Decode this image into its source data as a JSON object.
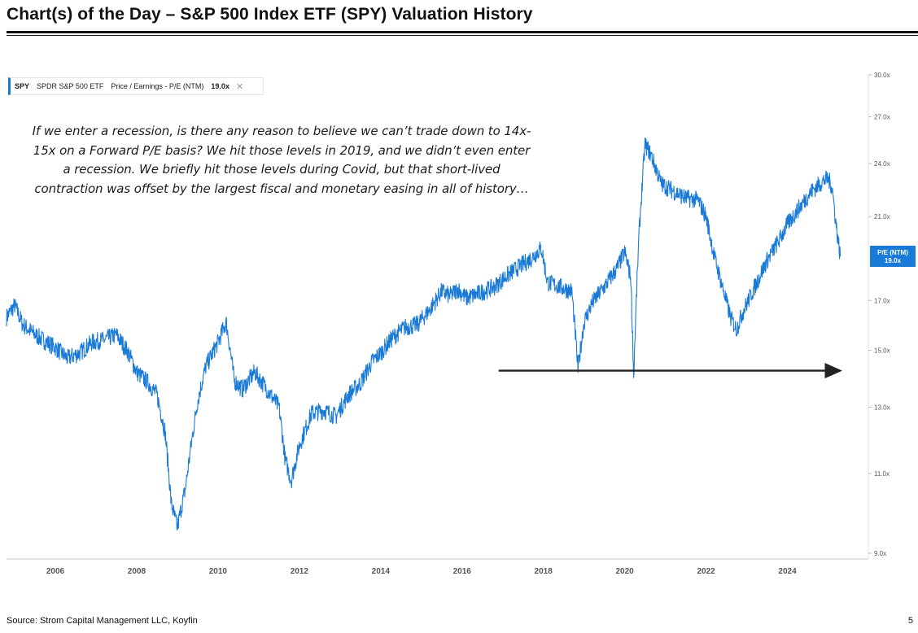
{
  "page": {
    "title": "Chart(s) of the Day – S&P 500 Index ETF (SPY) Valuation History",
    "source": "Source: Strom Capital Management LLC, Koyfin",
    "page_number": "5"
  },
  "legend": {
    "ticker": "SPY",
    "name": "SPDR S&P 500 ETF",
    "metric": "Price / Earnings - P/E (NTM)",
    "value": "19.0x",
    "close_icon": "close-icon"
  },
  "annotation": "If we enter a recession, is there any reason to believe we can’t trade down to 14x-15x on a Forward P/E basis? We hit those levels in 2019, and we didn’t even enter a recession. We briefly hit those levels during Covid, but that short-lived contraction was offset by the largest fiscal and monetary easing in all of history…",
  "badge": {
    "label": "P/E (NTM)",
    "value": "19.0x"
  },
  "colors": {
    "series": "#1a7ad8",
    "badge_bg": "#1a7ad8",
    "arrow": "#222222",
    "axis_text": "#555555"
  },
  "chart_data": {
    "type": "line",
    "title": "",
    "xlabel": "",
    "ylabel": "",
    "xlim": [
      2004.8,
      2025.65
    ],
    "ylim": [
      9.0,
      30.0
    ],
    "y_scale": "log",
    "grid": false,
    "x_tick_labels": [
      "2006",
      "2008",
      "2010",
      "2012",
      "2014",
      "2016",
      "2018",
      "2020",
      "2022",
      "2024"
    ],
    "y_tick_labels": [
      "9.0x",
      "11.0x",
      "13.0x",
      "15.0x",
      "17.0x",
      "21.0x",
      "24.0x",
      "27.0x",
      "30.0x"
    ],
    "series": [
      {
        "name": "P/E (NTM)",
        "x": [
          2004.8,
          2005.0,
          2005.2,
          2005.5,
          2005.8,
          2006.0,
          2006.3,
          2006.6,
          2006.9,
          2007.2,
          2007.5,
          2007.8,
          2008.0,
          2008.3,
          2008.5,
          2008.7,
          2008.85,
          2009.0,
          2009.2,
          2009.5,
          2009.7,
          2010.0,
          2010.2,
          2010.4,
          2010.6,
          2010.9,
          2011.2,
          2011.5,
          2011.65,
          2011.8,
          2012.0,
          2012.3,
          2012.6,
          2012.9,
          2013.2,
          2013.5,
          2013.8,
          2014.0,
          2014.3,
          2014.6,
          2014.9,
          2015.2,
          2015.5,
          2015.7,
          2015.9,
          2016.1,
          2016.4,
          2016.8,
          2017.1,
          2017.4,
          2017.7,
          2017.95,
          2018.1,
          2018.4,
          2018.7,
          2018.85,
          2019.0,
          2019.2,
          2019.5,
          2019.8,
          2020.0,
          2020.15,
          2020.22,
          2020.35,
          2020.5,
          2020.65,
          2020.9,
          2021.2,
          2021.5,
          2021.8,
          2022.0,
          2022.2,
          2022.4,
          2022.6,
          2022.75,
          2022.9,
          2023.2,
          2023.5,
          2023.8,
          2024.0,
          2024.3,
          2024.6,
          2024.9,
          2025.0,
          2025.1,
          2025.2,
          2025.3
        ],
        "values": [
          16.3,
          16.8,
          16.0,
          15.6,
          15.3,
          15.1,
          14.7,
          14.9,
          15.3,
          15.4,
          15.6,
          14.9,
          14.2,
          13.8,
          13.4,
          12.2,
          10.2,
          9.6,
          10.6,
          13.2,
          14.4,
          15.3,
          16.1,
          13.9,
          13.6,
          14.2,
          13.6,
          13.0,
          11.4,
          10.8,
          11.8,
          12.8,
          12.9,
          12.7,
          13.4,
          13.8,
          14.6,
          14.9,
          15.5,
          15.9,
          16.0,
          16.6,
          17.4,
          17.2,
          17.5,
          17.1,
          17.3,
          17.6,
          18.1,
          18.5,
          18.9,
          19.4,
          17.8,
          17.6,
          17.4,
          14.3,
          16.1,
          16.9,
          17.6,
          18.4,
          19.2,
          18.0,
          14.0,
          20.0,
          25.2,
          24.5,
          22.8,
          22.4,
          22.0,
          21.9,
          21.0,
          19.0,
          17.6,
          16.3,
          15.8,
          16.5,
          17.6,
          18.8,
          19.8,
          20.6,
          21.5,
          22.4,
          23.0,
          23.1,
          22.6,
          20.5,
          19.0
        ]
      }
    ],
    "annotation_arrow": {
      "x_start": 2016.9,
      "x_end": 2025.3,
      "y": 14.25
    }
  }
}
